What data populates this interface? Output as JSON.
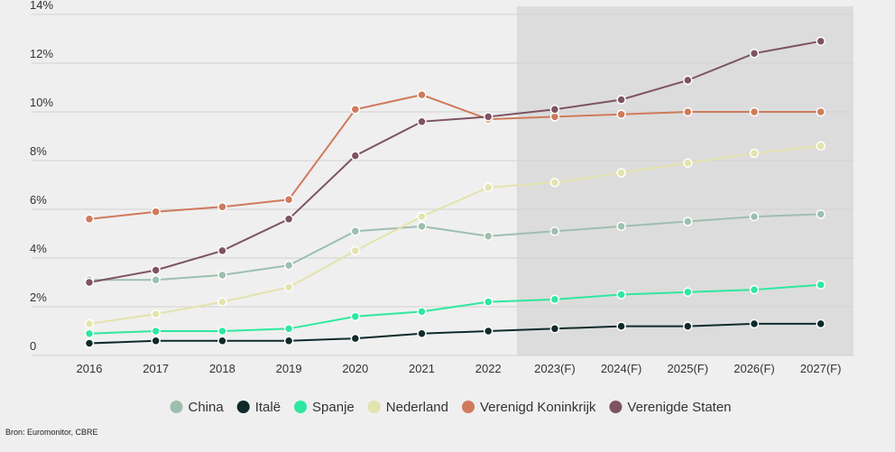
{
  "chart_data": {
    "type": "line",
    "title": "",
    "xlabel": "",
    "ylabel": "",
    "categories": [
      "2016",
      "2017",
      "2018",
      "2019",
      "2020",
      "2021",
      "2022",
      "2023(F)",
      "2024(F)",
      "2025(F)",
      "2026(F)",
      "2027(F)"
    ],
    "y_ticks": [
      "0",
      "2%",
      "4%",
      "6%",
      "8%",
      "10%",
      "12%",
      "14%"
    ],
    "ylim": [
      0,
      14
    ],
    "grid": true,
    "forecast_shading": {
      "from_category": "2023(F)",
      "to_category": "2027(F)",
      "color": "#dcdcdc"
    },
    "legend_position": "bottom-center",
    "series": [
      {
        "name": "China",
        "color": "#9dbfae",
        "values": [
          3.1,
          3.1,
          3.3,
          3.7,
          5.1,
          5.3,
          4.9,
          5.1,
          5.3,
          5.5,
          5.7,
          5.8
        ]
      },
      {
        "name": "Italë",
        "color": "#0f2a2a",
        "values": [
          0.5,
          0.6,
          0.6,
          0.6,
          0.7,
          0.9,
          1.0,
          1.1,
          1.2,
          1.2,
          1.3,
          1.3
        ]
      },
      {
        "name": "Spanje",
        "color": "#2ee8a0",
        "values": [
          0.9,
          1.0,
          1.0,
          1.1,
          1.6,
          1.8,
          2.2,
          2.3,
          2.5,
          2.6,
          2.7,
          2.9
        ]
      },
      {
        "name": "Nederland",
        "color": "#e3e3ae",
        "values": [
          1.3,
          1.7,
          2.2,
          2.8,
          4.3,
          5.7,
          6.9,
          7.1,
          7.5,
          7.9,
          8.3,
          8.6
        ]
      },
      {
        "name": "Verenigd Koninkrijk",
        "color": "#cf7a5c",
        "values": [
          5.6,
          5.9,
          6.1,
          6.4,
          10.1,
          10.7,
          9.7,
          9.8,
          9.9,
          10.0,
          10.0,
          10.0
        ]
      },
      {
        "name": "Verenigde Staten",
        "color": "#7e5364",
        "values": [
          3.0,
          3.5,
          4.3,
          5.6,
          8.2,
          9.6,
          9.8,
          10.1,
          10.5,
          11.3,
          12.4,
          12.9
        ]
      }
    ],
    "source": "Bron: Euromonitor, CBRE"
  }
}
